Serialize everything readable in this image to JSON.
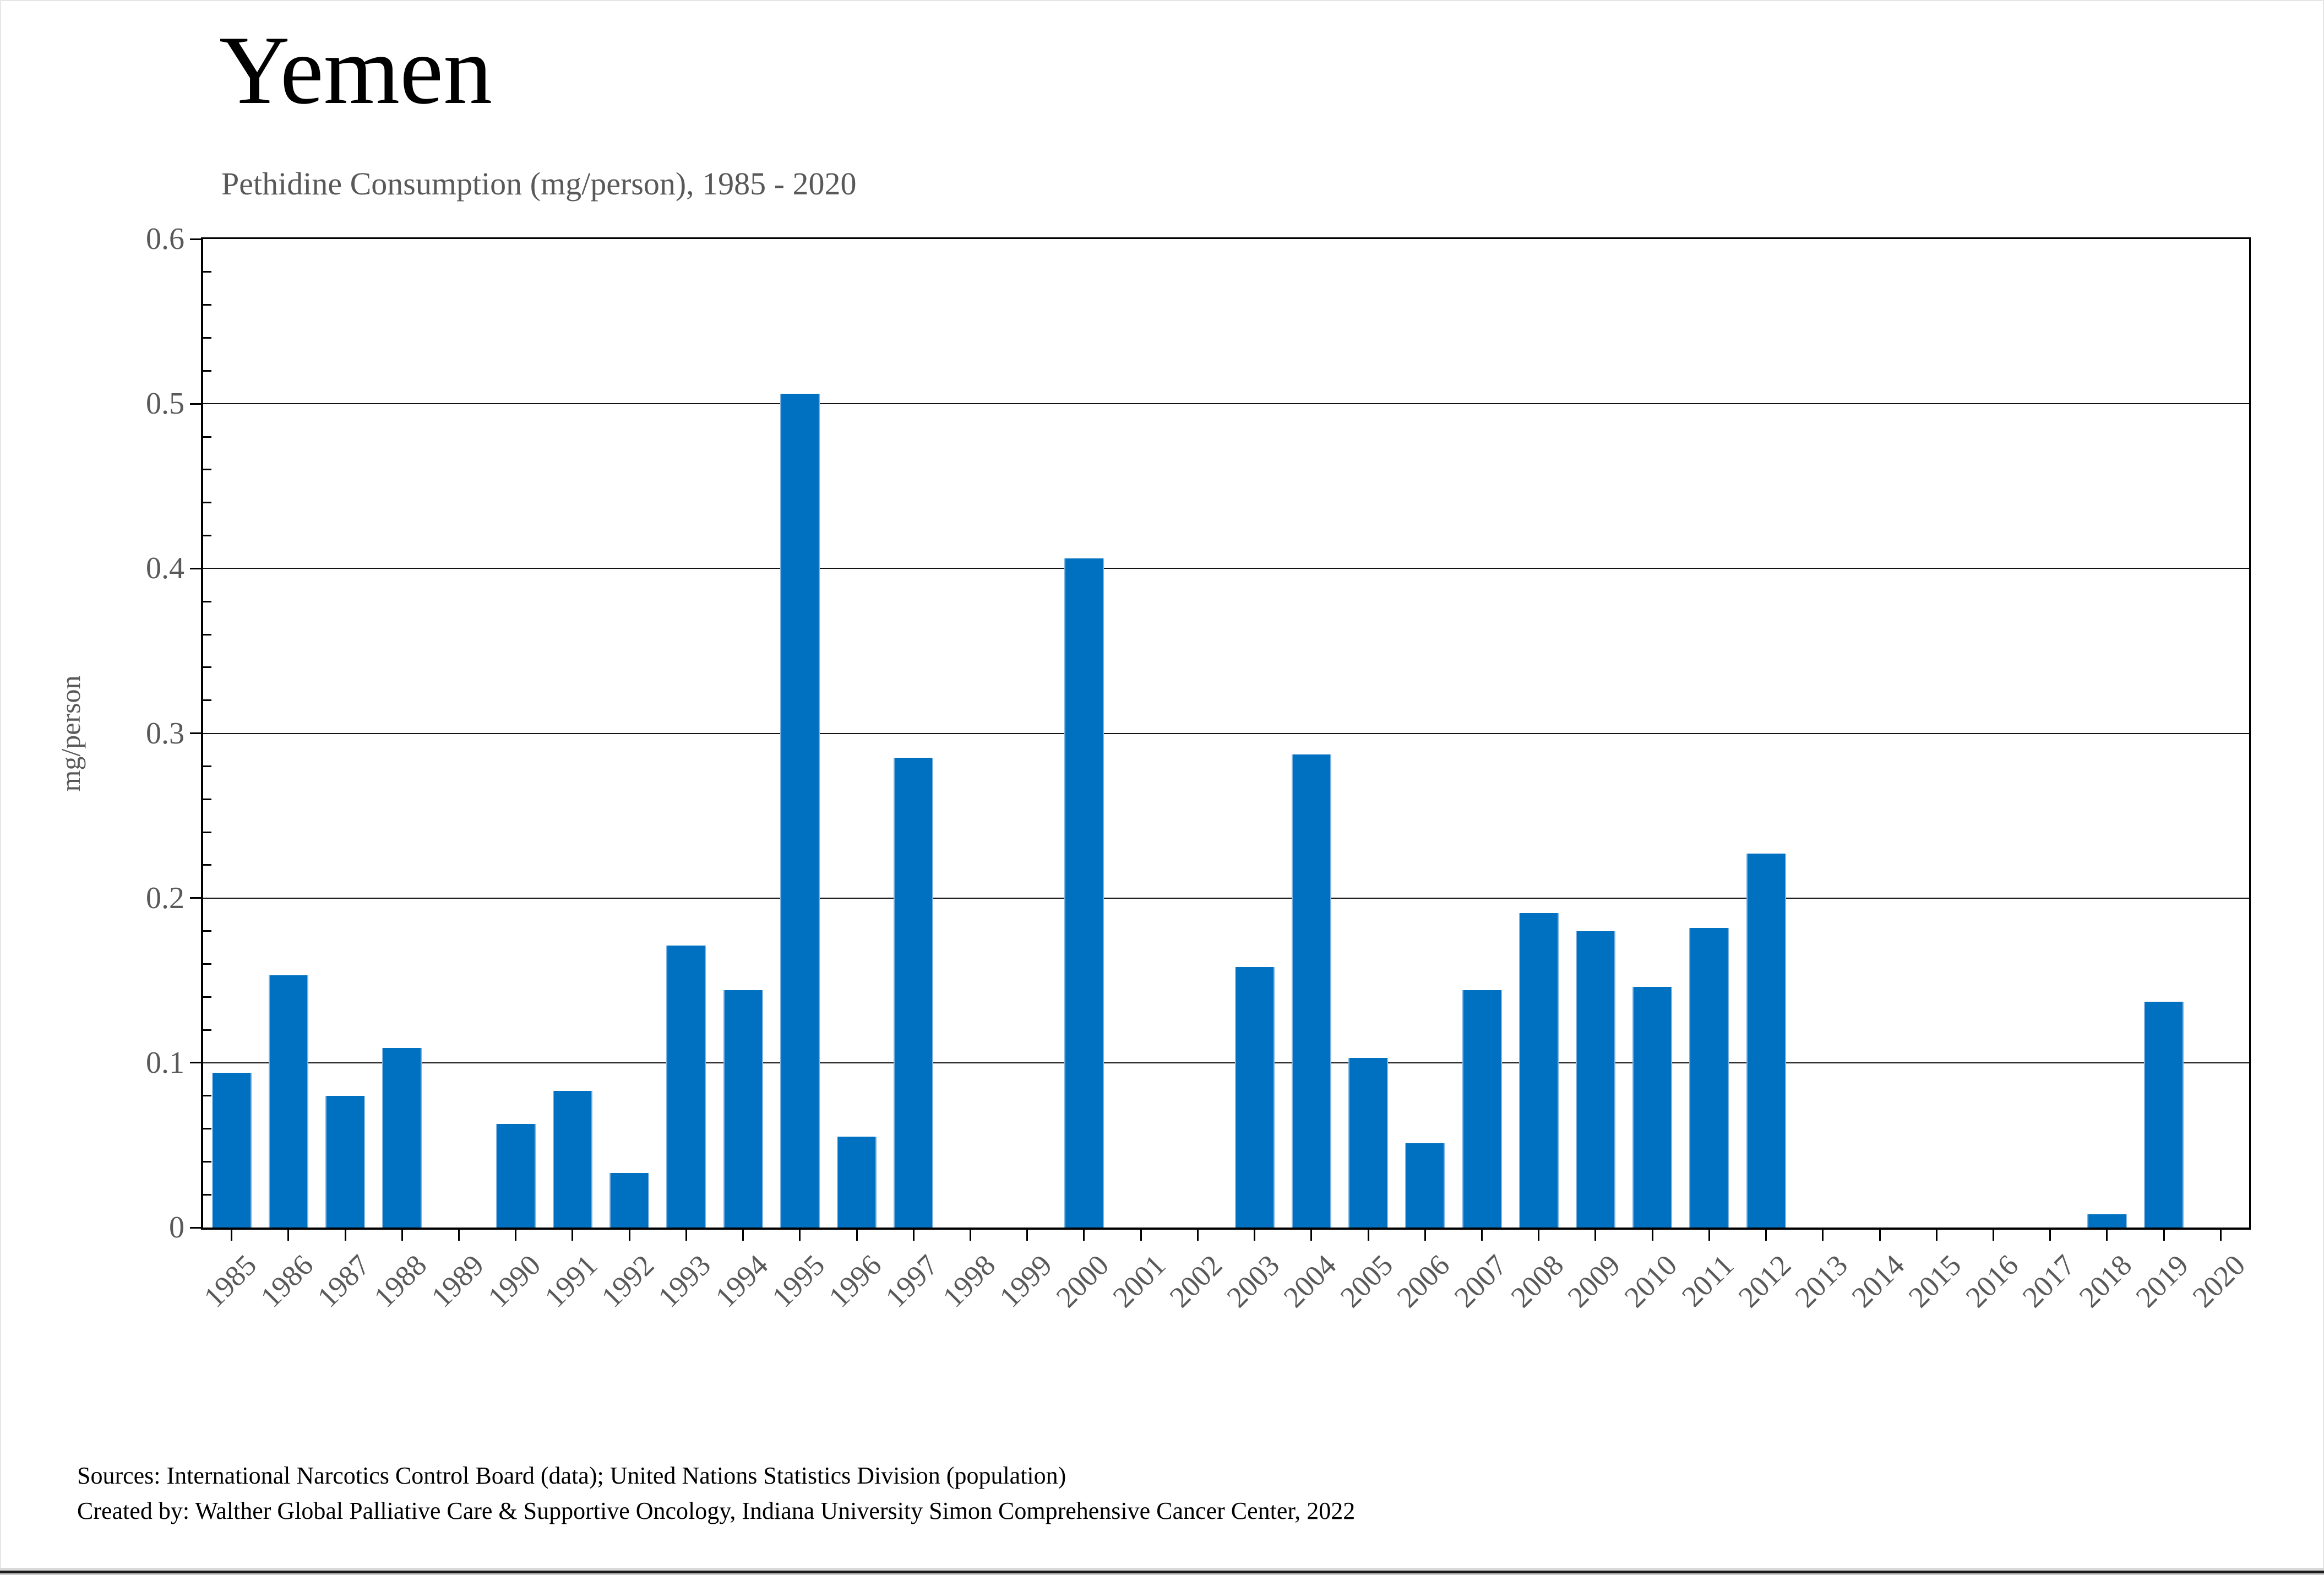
{
  "page": {
    "title": "Yemen",
    "subtitle": "Pethidine Consumption (mg/person), 1985 - 2020",
    "y_axis_title": "mg/person",
    "footer_line1": "Sources: International Narcotics Control Board (data); United Nations Statistics Division (population)",
    "footer_line2": "Created by: Walther Global Palliative Care & Supportive Oncology, Indiana University Simon Comprehensive Cancer Center, 2022"
  },
  "colors": {
    "bar_fill": "#0070C0",
    "bar_edge": "#7FB2E0",
    "axis_text": "#595959",
    "gridline": "#141414"
  },
  "chart_data": {
    "type": "bar",
    "title": "Yemen",
    "subtitle": "Pethidine Consumption (mg/person), 1985 - 2020",
    "xlabel": "",
    "ylabel": "mg/person",
    "ylim": [
      0,
      0.6
    ],
    "yticks": [
      0,
      0.1,
      0.2,
      0.3,
      0.4,
      0.5,
      0.6
    ],
    "ytick_labels": [
      "0",
      "0.1",
      "0.2",
      "0.3",
      "0.4",
      "0.5",
      "0.6"
    ],
    "minor_tick_step": 0.02,
    "grid": true,
    "legend": false,
    "categories": [
      "1985",
      "1986",
      "1987",
      "1988",
      "1989",
      "1990",
      "1991",
      "1992",
      "1993",
      "1994",
      "1995",
      "1996",
      "1997",
      "1998",
      "1999",
      "2000",
      "2001",
      "2002",
      "2003",
      "2004",
      "2005",
      "2006",
      "2007",
      "2008",
      "2009",
      "2010",
      "2011",
      "2012",
      "2013",
      "2014",
      "2015",
      "2016",
      "2017",
      "2018",
      "2019",
      "2020"
    ],
    "values": [
      0.094,
      0.153,
      0.08,
      0.109,
      0,
      0.063,
      0.083,
      0.033,
      0.171,
      0.144,
      0.506,
      0.055,
      0.285,
      0,
      0,
      0.406,
      0,
      0,
      0.158,
      0.287,
      0.103,
      0.051,
      0.144,
      0.191,
      0.18,
      0.146,
      0.182,
      0.227,
      0,
      0,
      0,
      0,
      0,
      0.008,
      0.137,
      0
    ]
  }
}
